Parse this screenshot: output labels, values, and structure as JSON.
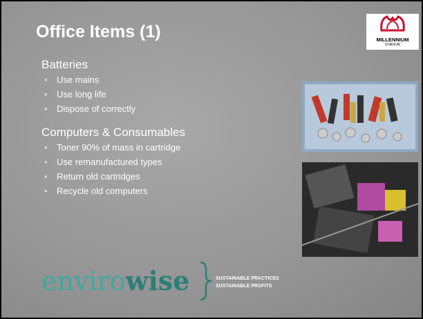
{
  "header": {
    "title": "Office Items (1)"
  },
  "sections": [
    {
      "heading": "Batteries",
      "bullets": [
        "Use mains",
        "Use long life",
        "Dispose of correctly"
      ]
    },
    {
      "heading": "Computers & Consumables",
      "bullets": [
        "Toner 90% of mass in cartridge",
        "Use remanufactured types",
        "Return old cartridges",
        "Recycle old computers"
      ]
    }
  ],
  "stadium_logo": {
    "line1": "MILLENNIUM",
    "line2": "STADIUM"
  },
  "envirowise_logo": {
    "part1": "enviro",
    "part2": "wise",
    "tagline1": "SUSTAINABLE PRACTICES",
    "tagline2": "SUSTAINABLE PROFITS"
  }
}
